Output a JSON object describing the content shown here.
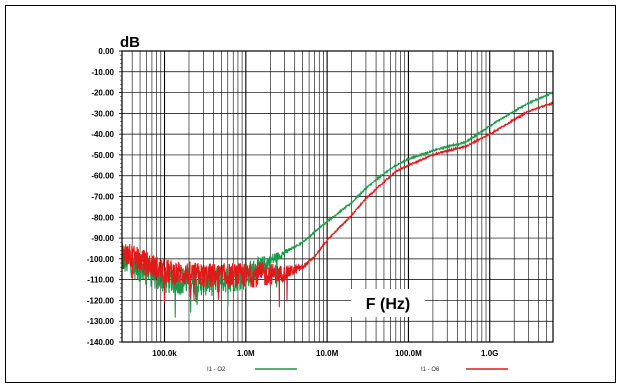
{
  "chart_data": {
    "type": "line",
    "ylabel": "dB",
    "xlabel": "F (Hz)",
    "x_scale": "log",
    "xlim_hz": [
      30000,
      6000000000
    ],
    "ylim": [
      -140,
      0
    ],
    "grid": true,
    "y_ticks": [
      "0.00",
      "-10.00",
      "-20.00",
      "-30.00",
      "-40.00",
      "-50.00",
      "-60.00",
      "-70.00",
      "-80.00",
      "-90.00",
      "-100.00",
      "-110.00",
      "-120.00",
      "-130.00",
      "-140.00"
    ],
    "x_ticks": [
      {
        "label": "100.0k",
        "value": 100000
      },
      {
        "label": "1.0M",
        "value": 1000000
      },
      {
        "label": "10.0M",
        "value": 10000000
      },
      {
        "label": "100.0M",
        "value": 100000000
      },
      {
        "label": "1.0G",
        "value": 1000000000
      }
    ],
    "legend_position": "bottom",
    "series": [
      {
        "name": "I1 - O2",
        "color": "#1a9a4a",
        "noise_below_hz": 4000000,
        "noise_level_db": -110,
        "x": [
          30000,
          100000,
          300000,
          1000000,
          2000000,
          3000000,
          5000000,
          10000000,
          20000000,
          30000000,
          50000000,
          70000000,
          100000000,
          200000000,
          300000000,
          500000000,
          1000000000,
          2000000000,
          3000000000,
          6000000000
        ],
        "y": [
          -100,
          -110,
          -111,
          -108,
          -101,
          -97,
          -92,
          -82,
          -73,
          -66,
          -59,
          -55,
          -52,
          -48,
          -46,
          -44,
          -36,
          -29,
          -25,
          -20
        ]
      },
      {
        "name": "I1 - O6",
        "color": "#e01a1a",
        "noise_below_hz": 7000000,
        "noise_level_db": -108,
        "x": [
          30000,
          100000,
          300000,
          1000000,
          3000000,
          5000000,
          7000000,
          10000000,
          20000000,
          30000000,
          50000000,
          70000000,
          100000000,
          200000000,
          300000000,
          500000000,
          1000000000,
          2000000000,
          3000000000,
          6000000000
        ],
        "y": [
          -97,
          -106,
          -108,
          -108,
          -107,
          -104,
          -99,
          -91,
          -79,
          -71,
          -63,
          -58,
          -55,
          -50,
          -48,
          -46,
          -40,
          -33,
          -29,
          -25
        ]
      }
    ]
  }
}
